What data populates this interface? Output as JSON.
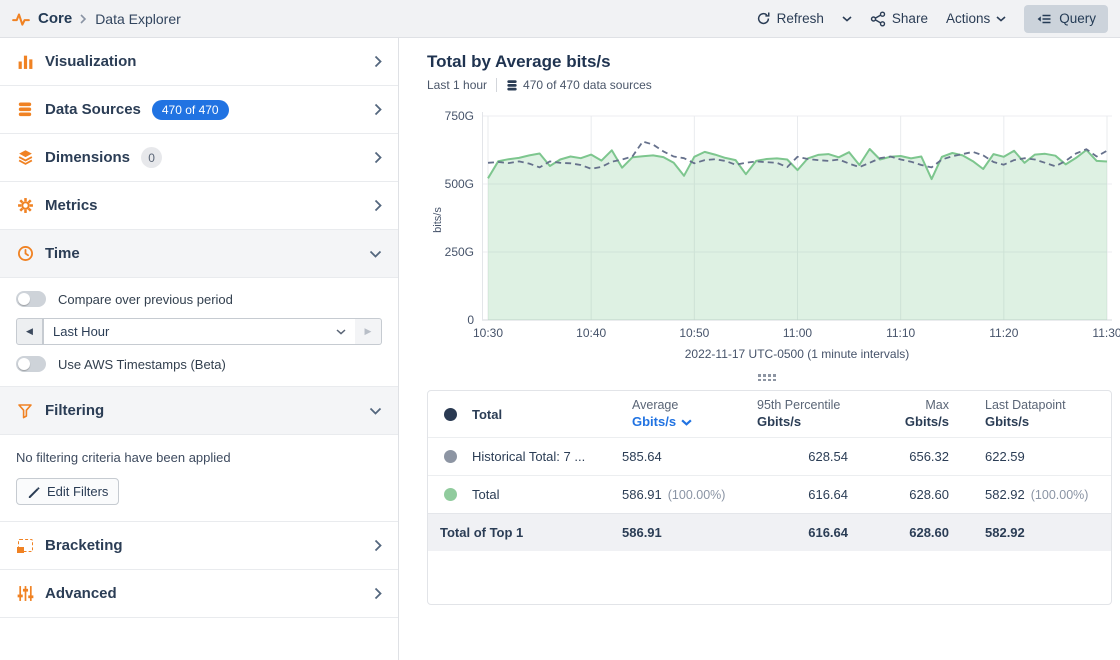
{
  "topbar": {
    "breadcrumb": {
      "app": "Core",
      "page": "Data Explorer"
    },
    "refresh_label": "Refresh",
    "share_label": "Share",
    "actions_label": "Actions",
    "query_label": "Query"
  },
  "sidebar": {
    "items": [
      {
        "label": "Visualization"
      },
      {
        "label": "Data Sources",
        "badge": "470 of 470"
      },
      {
        "label": "Dimensions",
        "badge": "0"
      },
      {
        "label": "Metrics"
      },
      {
        "label": "Time"
      },
      {
        "label": "Filtering"
      },
      {
        "label": "Bracketing"
      },
      {
        "label": "Advanced"
      }
    ],
    "time": {
      "compare_toggle_label": "Compare over previous period",
      "compare_toggle_on": false,
      "range_value": "Last Hour",
      "aws_toggle_label": "Use AWS Timestamps (Beta)",
      "aws_toggle_on": false
    },
    "filtering": {
      "empty_text": "No filtering criteria have been applied",
      "edit_button_label": "Edit Filters"
    }
  },
  "main": {
    "title": "Total by Average bits/s",
    "subtitle_time": "Last 1 hour",
    "subtitle_sources": "470 of 470 data sources"
  },
  "chart_data": {
    "type": "area",
    "title": "Total by Average bits/s",
    "ylabel": "bits/s",
    "ylim": [
      0,
      750
    ],
    "grid": true,
    "y_ticks": [
      {
        "value": 750,
        "label": "750G"
      },
      {
        "value": 500,
        "label": "500G"
      },
      {
        "value": 250,
        "label": "250G"
      },
      {
        "value": 0,
        "label": "0"
      }
    ],
    "x_ticks": [
      "10:30",
      "10:40",
      "10:50",
      "11:00",
      "11:10",
      "11:20",
      "11:30"
    ],
    "x_axis_caption": "2022-11-17 UTC-0500 (1 minute intervals)",
    "interval": "1 minute",
    "series": [
      {
        "name": "Total",
        "type": "area",
        "color": "#7dc68e",
        "fill": "rgba(125,198,142,0.25)",
        "dash": false,
        "values": [
          521,
          584,
          591,
          596,
          605,
          612,
          566,
          590,
          601,
          595,
          608,
          586,
          624,
          560,
          598,
          602,
          605,
          599,
          578,
          530,
          600,
          618,
          608,
          596,
          588,
          536,
          585,
          592,
          594,
          590,
          551,
          594,
          607,
          610,
          598,
          617,
          570,
          628.6,
          590,
          600,
          603,
          594,
          601,
          518,
          600,
          614,
          605,
          584,
          555,
          610,
          600,
          622,
          578,
          608,
          611,
          604,
          572,
          596,
          625,
          585,
          582.9
        ]
      },
      {
        "name": "Historical Total",
        "type": "line",
        "color": "#66718c",
        "dash": true,
        "values": [
          578,
          581,
          577,
          583,
          575,
          561,
          583,
          578,
          576,
          570,
          556,
          563,
          582,
          590,
          601,
          656.3,
          645,
          620,
          601,
          595,
          576,
          588,
          591,
          585,
          571,
          578,
          583,
          580,
          578,
          562,
          600,
          592,
          588,
          585,
          590,
          575,
          562,
          578,
          595,
          601,
          590,
          582,
          570,
          561,
          590,
          602,
          610,
          618,
          605,
          581,
          571,
          588,
          595,
          590,
          578,
          565,
          585,
          612,
          628,
          601,
          622.6
        ]
      }
    ]
  },
  "table": {
    "header": {
      "name": "Total",
      "dot_color": "#2a3a52",
      "cols": [
        {
          "top": "Average",
          "unit": "Gbits/s",
          "sorted": true
        },
        {
          "top": "95th Percentile",
          "unit": "Gbits/s"
        },
        {
          "top": "Max",
          "unit": "Gbits/s"
        },
        {
          "top": "Last Datapoint",
          "unit": "Gbits/s"
        }
      ]
    },
    "rows": [
      {
        "dot": "#8d95a3",
        "name": "Historical Total: 7 ...",
        "avg": "585.64",
        "avg_pct": "",
        "p95": "628.54",
        "max": "656.32",
        "last": "622.59",
        "last_pct": ""
      },
      {
        "dot": "#90cb9d",
        "name": "Total",
        "avg": "586.91",
        "avg_pct": "(100.00%)",
        "p95": "616.64",
        "max": "628.60",
        "last": "582.92",
        "last_pct": "(100.00%)"
      }
    ],
    "footer": {
      "label": "Total of Top 1",
      "avg": "586.91",
      "p95": "616.64",
      "max": "628.60",
      "last": "582.92"
    }
  }
}
